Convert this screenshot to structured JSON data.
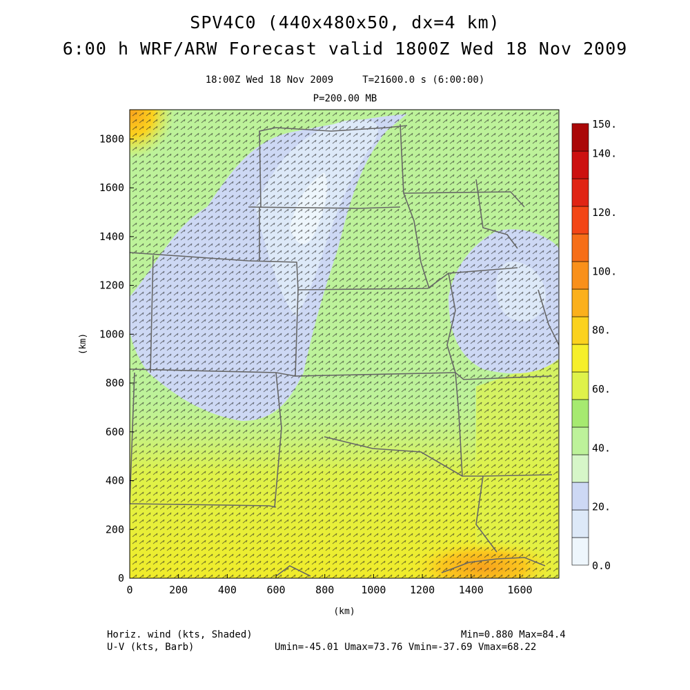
{
  "header": {
    "title": "SPV4C0 (440x480x50, dx=4 km)",
    "subtitle": "6:00 h WRF/ARW Forecast valid 1800Z Wed 18 Nov 2009",
    "valid_line": "18:00Z Wed 18 Nov 2009     T=21600.0 s (6:00:00)",
    "level_line": "P=200.00 MB"
  },
  "footer": {
    "field1": "Horiz. wind (kts, Shaded)",
    "field2": "U-V (kts, Barb)",
    "minmax": "Min=0.880 Max=84.4",
    "uv_stats": "Umin=-45.01 Umax=73.76 Vmin=-37.69 Vmax=68.22"
  },
  "axes": {
    "xlabel": "(km)",
    "ylabel": "(km)",
    "x_ticks": [
      "0",
      "200",
      "400",
      "600",
      "800",
      "1000",
      "1200",
      "1400",
      "1600"
    ],
    "y_ticks": [
      "0",
      "200",
      "400",
      "600",
      "800",
      "1000",
      "1200",
      "1400",
      "1600",
      "1800"
    ]
  },
  "colorbar": {
    "labels": [
      "0.0",
      "20.",
      "40.",
      "60.",
      "80.",
      "100.",
      "120.",
      "140.",
      "150."
    ],
    "colors": [
      "#eef6fc",
      "#dde9f8",
      "#cdd8f4",
      "#d6f6c8",
      "#bdf29a",
      "#a6ea70",
      "#dff24a",
      "#f6ef2a",
      "#fbd21e",
      "#fbb01c",
      "#f9901a",
      "#f66e18",
      "#f34616",
      "#e02414",
      "#cc1010",
      "#aa0808"
    ]
  },
  "chart_data": {
    "type": "heatmap",
    "title": "SPV4C0 (440x480x50, dx=4 km)",
    "xlabel": "(km)",
    "ylabel": "(km)",
    "xlim": [
      0,
      1760
    ],
    "ylim": [
      0,
      1920
    ],
    "field": "Horiz. wind (kts, Shaded)",
    "min": 0.88,
    "max": 84.4,
    "colorbar_range": [
      0,
      150
    ]
  }
}
